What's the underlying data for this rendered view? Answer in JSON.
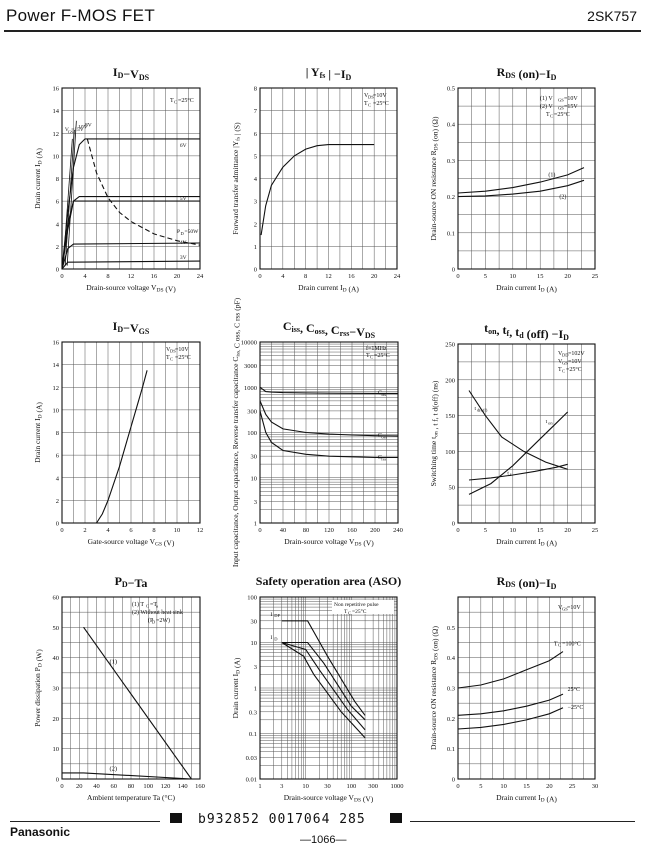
{
  "header": {
    "title": "Power F-MOS FET",
    "part": "2SK757"
  },
  "footer": {
    "brand": "Panasonic",
    "code": "b932852 0017064 285",
    "page": "—1066—"
  },
  "chart_data": [
    {
      "id": "id-vds",
      "type": "line",
      "title_main": "I",
      "title_sub": "D",
      "title_mid": "−V",
      "title_sub2": "DS",
      "xlabel": "Drain-source voltage V",
      "xlabel_sub": "DS",
      "xlabel_unit": "(V)",
      "ylabel": "Drain current I",
      "ylabel_sub": "D",
      "ylabel_unit": "(A)",
      "xlim": [
        0,
        24
      ],
      "ylim": [
        0,
        16
      ],
      "xticks": [
        0,
        4,
        8,
        12,
        16,
        20,
        24
      ],
      "yticks": [
        0,
        2,
        4,
        6,
        8,
        10,
        12,
        14,
        16
      ],
      "annotations": [
        "T",
        "C",
        "=25°C"
      ],
      "vgs_labels": [
        "V",
        "GS",
        "=15V",
        "10V",
        "8V",
        "6V",
        "5V",
        "4V",
        "3V"
      ],
      "pd_label": "P",
      "pd_sub": "D",
      "pd_val": "=50W",
      "series": [
        {
          "label": "10V",
          "x": [
            0,
            1,
            2,
            3,
            4,
            24
          ],
          "y": [
            0,
            5,
            9,
            11,
            11.5,
            11.5
          ]
        },
        {
          "label": "6V",
          "x": [
            0,
            1,
            2,
            3,
            24
          ],
          "y": [
            0,
            4,
            6,
            6.4,
            6.4
          ]
        },
        {
          "label": "5V",
          "x": [
            0,
            1,
            2,
            24
          ],
          "y": [
            0,
            3.5,
            6,
            6
          ]
        },
        {
          "label": "4V",
          "x": [
            0,
            1,
            2,
            24
          ],
          "y": [
            0,
            1.8,
            2.2,
            2.3
          ]
        },
        {
          "label": "3V",
          "x": [
            0,
            1,
            24
          ],
          "y": [
            0,
            0.6,
            0.7
          ]
        }
      ],
      "pd_curve": {
        "x": [
          4.4,
          6,
          8,
          10,
          12,
          16,
          20,
          24
        ],
        "y": [
          11.5,
          8.5,
          6.3,
          5,
          4.2,
          3.1,
          2.5,
          2.1
        ]
      }
    },
    {
      "id": "yfs-id",
      "type": "line",
      "title_main": "| Y",
      "title_sub": "fs",
      "title_mid": " | −I",
      "title_sub2": "D",
      "xlabel": "Drain current I",
      "xlabel_sub": "D",
      "xlabel_unit": "(A)",
      "ylabel": "Forward transfer admittance |Y",
      "ylabel_sub": "fs",
      "ylabel_unit": "| (S)",
      "xlim": [
        0,
        24
      ],
      "ylim": [
        0,
        8
      ],
      "xticks": [
        0,
        4,
        8,
        12,
        16,
        20,
        24
      ],
      "yticks": [
        0,
        1,
        2,
        3,
        4,
        5,
        6,
        7,
        8
      ],
      "annotations": [
        "V",
        "DS",
        "=10V",
        "T",
        "C",
        "=25°C"
      ],
      "series": [
        {
          "label": "",
          "x": [
            0.2,
            1,
            2,
            4,
            6,
            8,
            10,
            12,
            16,
            20
          ],
          "y": [
            1.5,
            2.8,
            3.7,
            4.5,
            5.0,
            5.3,
            5.45,
            5.5,
            5.5,
            5.5
          ]
        }
      ]
    },
    {
      "id": "rds-id-1",
      "type": "line",
      "title_main": "R",
      "title_sub": "DS",
      "title_mid": " (on)−I",
      "title_sub2": "D",
      "xlabel": "Drain current I",
      "xlabel_sub": "D",
      "xlabel_unit": "(A)",
      "ylabel": "Drain-source ON resistance R",
      "ylabel_sub": "DS",
      "ylabel_unit": "(on) (Ω)",
      "xlim": [
        0,
        25
      ],
      "ylim": [
        0,
        0.5
      ],
      "xticks": [
        0,
        5,
        10,
        15,
        20,
        25
      ],
      "yticks": [
        0,
        0.1,
        0.2,
        0.3,
        0.4,
        0.5
      ],
      "annotations": [
        "(1)  V",
        "GS",
        "=10V",
        "(2)  V",
        "GS",
        "=15V",
        "T",
        "C",
        "=25°C"
      ],
      "series": [
        {
          "label": "(1)",
          "x": [
            0,
            5,
            10,
            15,
            20,
            23
          ],
          "y": [
            0.21,
            0.215,
            0.225,
            0.24,
            0.26,
            0.28
          ]
        },
        {
          "label": "(2)",
          "x": [
            0,
            5,
            10,
            15,
            20,
            23
          ],
          "y": [
            0.2,
            0.202,
            0.207,
            0.215,
            0.23,
            0.245
          ]
        }
      ]
    },
    {
      "id": "id-vgs",
      "type": "line",
      "title_main": "I",
      "title_sub": "D",
      "title_mid": "−V",
      "title_sub2": "GS",
      "xlabel": "Gate-source voltage V",
      "xlabel_sub": "GS",
      "xlabel_unit": "(V)",
      "ylabel": "Drain current I",
      "ylabel_sub": "D",
      "ylabel_unit": "(A)",
      "xlim": [
        0,
        12
      ],
      "ylim": [
        0,
        16
      ],
      "xticks": [
        0,
        2,
        4,
        6,
        8,
        10,
        12
      ],
      "yticks": [
        0,
        2,
        4,
        6,
        8,
        10,
        12,
        14,
        16
      ],
      "annotations": [
        "V",
        "DS",
        "=10V",
        "T",
        "C",
        "=25°C"
      ],
      "series": [
        {
          "label": "",
          "x": [
            3.0,
            3.5,
            4,
            5,
            6,
            7,
            7.4
          ],
          "y": [
            0,
            0.8,
            2,
            5,
            8.5,
            12,
            13.5
          ]
        }
      ]
    },
    {
      "id": "cap-vds",
      "type": "line",
      "yscale": "log",
      "title_main": "C",
      "title_sub": "iss",
      "title_mid": ", C",
      "title_sub2": "oss",
      "title_mid2": ", C",
      "title_sub3": "rss",
      "title_mid3": "−V",
      "title_sub4": "DS",
      "xlabel": "Drain-source voltage V",
      "xlabel_sub": "DS",
      "xlabel_unit": "(V)",
      "ylabel": "Input capacitance, Output capacitance, Reverse transfer capacitance C",
      "ylabel_sub": "iss, ",
      "ylabel_unit": "C oss, C rss (pF)",
      "xlim": [
        0,
        240
      ],
      "ylim": [
        1,
        10000
      ],
      "xticks": [
        0,
        40,
        80,
        120,
        160,
        200,
        240
      ],
      "ytick_labels": [
        "1",
        "3",
        "10",
        "30",
        "100",
        "300",
        "1000",
        "3000",
        "10000"
      ],
      "annotations": [
        "f=1MHz",
        "T",
        "C",
        "=25°C"
      ],
      "series": [
        {
          "label": "C",
          "label_sub": "iss",
          "x": [
            0,
            10,
            20,
            40,
            80,
            120,
            160,
            200,
            240
          ],
          "y": [
            1000,
            800,
            780,
            760,
            750,
            740,
            735,
            730,
            730
          ]
        },
        {
          "label": "C",
          "label_sub": "oss",
          "x": [
            0,
            10,
            20,
            40,
            80,
            120,
            160,
            200,
            240
          ],
          "y": [
            500,
            250,
            170,
            120,
            100,
            92,
            88,
            85,
            84
          ]
        },
        {
          "label": "C",
          "label_sub": "rss",
          "x": [
            0,
            10,
            20,
            40,
            80,
            120,
            160,
            200,
            240
          ],
          "y": [
            300,
            100,
            60,
            40,
            33,
            30,
            29,
            28,
            28
          ]
        }
      ]
    },
    {
      "id": "tsw-id",
      "type": "line",
      "title_main": "t",
      "title_sub": "on",
      "title_mid": ", t",
      "title_sub2": "f",
      "title_mid2": ", t",
      "title_sub3": "d",
      "title_mid3": " (off) −I",
      "title_sub4": "D",
      "xlabel": "Drain current I",
      "xlabel_sub": "D",
      "xlabel_unit": "(A)",
      "ylabel": "Switching time t",
      "ylabel_sub": "on",
      "ylabel_unit": ", t f, t d(off) (ns)",
      "xlim": [
        0,
        25
      ],
      "ylim": [
        0,
        250
      ],
      "xticks": [
        0,
        5,
        10,
        15,
        20,
        25
      ],
      "yticks": [
        0,
        50,
        100,
        150,
        200,
        250
      ],
      "annotations": [
        "V",
        "DD",
        "=102V",
        "V",
        "GS",
        "=10V",
        "T",
        "C",
        "=25°C"
      ],
      "series": [
        {
          "label": "t",
          "label_sub": "d(off)",
          "x": [
            2,
            5,
            8,
            12,
            16,
            20
          ],
          "y": [
            185,
            150,
            120,
            100,
            85,
            75
          ]
        },
        {
          "label": "t",
          "label_sub": "on",
          "x": [
            2,
            6,
            10,
            14,
            18,
            20
          ],
          "y": [
            40,
            55,
            80,
            110,
            140,
            155
          ]
        },
        {
          "label": "t",
          "label_sub": "f",
          "x": [
            2,
            6,
            10,
            14,
            18,
            20
          ],
          "y": [
            60,
            63,
            67,
            72,
            78,
            82
          ]
        }
      ]
    },
    {
      "id": "pd-ta",
      "type": "line",
      "title_main": "P",
      "title_sub": "D",
      "title_mid": "−Ta",
      "title_sub2": "",
      "xlabel": "Ambient temperature Ta (°C)",
      "xlabel_sub": "",
      "xlabel_unit": "",
      "ylabel": "Power dissipation P",
      "ylabel_sub": "D",
      "ylabel_unit": "(W)",
      "xlim": [
        0,
        160
      ],
      "ylim": [
        0,
        60
      ],
      "xticks": [
        0,
        20,
        40,
        60,
        80,
        100,
        120,
        140,
        160
      ],
      "yticks": [
        0,
        10,
        20,
        30,
        40,
        50,
        60
      ],
      "annotations": [
        "(1)  T",
        "C",
        "=T",
        "a",
        "(2)  Without heat sink",
        "(P",
        "D",
        "=2W)"
      ],
      "series": [
        {
          "label": "(1)",
          "x": [
            25,
            150
          ],
          "y": [
            50,
            0
          ]
        },
        {
          "label": "(2)",
          "x": [
            0,
            25,
            150
          ],
          "y": [
            2,
            2,
            0
          ]
        }
      ]
    },
    {
      "id": "aso",
      "type": "line",
      "xscale": "log",
      "yscale": "log",
      "title_main": "Safety operation area (ASO)",
      "title_sub": "",
      "title_mid": "",
      "title_sub2": "",
      "xlabel": "Drain-source voltage V",
      "xlabel_sub": "DS",
      "xlabel_unit": "(V)",
      "ylabel": "Drain current I",
      "ylabel_sub": "D",
      "ylabel_unit": "(A)",
      "xlim": [
        1,
        1000
      ],
      "ylim": [
        0.01,
        100
      ],
      "xtick_labels": [
        "1",
        "3",
        "10",
        "30",
        "100",
        "300",
        "1000"
      ],
      "ytick_labels": [
        "0.01",
        "0.03",
        "0.1",
        "0.3",
        "1",
        "3",
        "10",
        "30",
        "100"
      ],
      "annotations": [
        "Non repetitive pulse",
        "T",
        "C",
        "=25°C",
        "I",
        "DP",
        "I",
        "D"
      ],
      "series": [
        {
          "label": "",
          "x": [
            3,
            11,
            30,
            120,
            200
          ],
          "y": [
            30,
            30,
            5,
            0.5,
            0.25
          ]
        },
        {
          "label": "",
          "x": [
            3,
            11,
            25,
            100,
            200
          ],
          "y": [
            10,
            10,
            3.5,
            0.4,
            0.2
          ]
        },
        {
          "label": "",
          "x": [
            3,
            10,
            20,
            80,
            200
          ],
          "y": [
            10,
            7,
            2.5,
            0.35,
            0.12
          ]
        },
        {
          "label": "",
          "x": [
            3,
            9,
            15,
            60,
            200
          ],
          "y": [
            10,
            5,
            2,
            0.3,
            0.08
          ]
        }
      ]
    },
    {
      "id": "rds-id-2",
      "type": "line",
      "title_main": "R",
      "title_sub": "DS",
      "title_mid": " (on)−I",
      "title_sub2": "D",
      "xlabel": "Drain current I",
      "xlabel_sub": "D",
      "xlabel_unit": "(A)",
      "ylabel": "Drain-source ON resistance R",
      "ylabel_sub": "DS",
      "ylabel_unit": "(on) (Ω)",
      "xlim": [
        0,
        30
      ],
      "ylim": [
        0,
        0.6
      ],
      "xticks": [
        0,
        5,
        10,
        15,
        20,
        25,
        30
      ],
      "yticks": [
        0,
        0.1,
        0.2,
        0.3,
        0.4,
        0.5
      ],
      "annotations": [
        "V",
        "GS",
        "=10V"
      ],
      "series": [
        {
          "label": "T",
          "label_sub": "C",
          "label_val": "=100°C",
          "x": [
            0,
            5,
            10,
            15,
            20,
            23
          ],
          "y": [
            0.3,
            0.31,
            0.33,
            0.36,
            0.39,
            0.42
          ]
        },
        {
          "label": "25°C",
          "label_sub": "",
          "label_val": "",
          "x": [
            0,
            5,
            10,
            15,
            20,
            23
          ],
          "y": [
            0.21,
            0.215,
            0.225,
            0.24,
            0.26,
            0.28
          ]
        },
        {
          "label": "−25°C",
          "label_sub": "",
          "label_val": "",
          "x": [
            0,
            5,
            10,
            15,
            20,
            23
          ],
          "y": [
            0.165,
            0.17,
            0.18,
            0.195,
            0.215,
            0.235
          ]
        }
      ]
    }
  ]
}
